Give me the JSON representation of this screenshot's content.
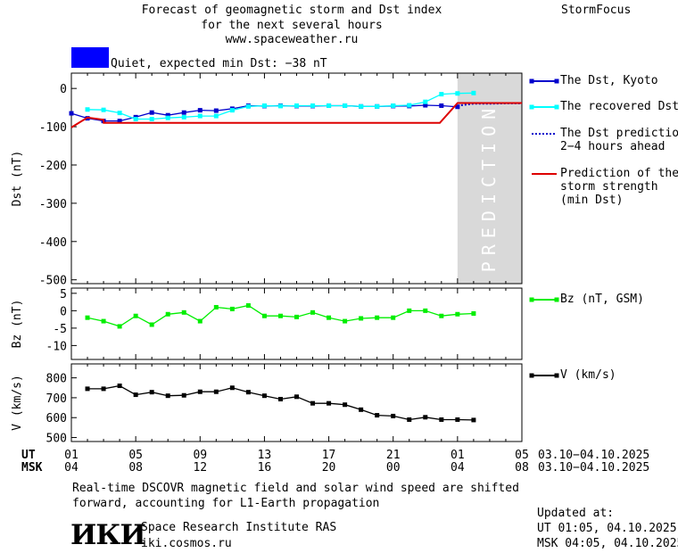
{
  "header": {
    "title_lines": [
      "Forecast of geomagnetic storm and Dst index",
      "for the next several hours",
      "www.spaceweather.ru"
    ],
    "brand": "StormFocus",
    "status_text": "Quiet, expected min Dst: −38 nT",
    "status_color": "#0000ff"
  },
  "legend": {
    "dst_kyoto": "The Dst, Kyoto",
    "recovered_dst": [
      "The recovered Dst"
    ],
    "dst_prediction": [
      "The Dst prediction",
      "2−4 hours ahead"
    ],
    "storm_strength": [
      "Prediction of the",
      "storm strength",
      "(min Dst)"
    ],
    "bz": "Bz (nT, GSM)",
    "v": "V (km/s)"
  },
  "prediction_label": "PREDICTION",
  "time_axis": {
    "ut_label": "UT",
    "msk_label": "MSK",
    "ut_ticks": [
      "01",
      "05",
      "09",
      "13",
      "17",
      "21",
      "01",
      "05"
    ],
    "msk_ticks": [
      "04",
      "08",
      "12",
      "16",
      "20",
      "00",
      "04",
      "08"
    ],
    "ut_range": "03.10−04.10.2025",
    "msk_range": "03.10−04.10.2025"
  },
  "footer": {
    "note_lines": [
      "Real-time DSCOVR magnetic field and solar wind speed are shifted",
      "forward, accounting for L1-Earth propagation"
    ],
    "logo_text": "ИКИ",
    "institute": "Space Research Institute RAS",
    "website": "iki.cosmos.ru",
    "updated_label": "Updated at:",
    "updated_ut": "UT   01:05, 04.10.2025",
    "updated_msk": "MSK 04:05, 04.10.2025"
  },
  "colors": {
    "dst": "#0000cc",
    "recovered": "#00ffff",
    "prediction": "#0000cc",
    "storm": "#dd0000",
    "bz": "#00ee00",
    "v": "#000000",
    "shade": "#d9d9d9"
  },
  "chart_data": [
    {
      "type": "line",
      "ylabel": "Dst (nT)",
      "xlim": [
        0,
        28
      ],
      "ylim": [
        -510,
        40
      ],
      "yticks": [
        0,
        -100,
        -200,
        -300,
        -400,
        -500
      ],
      "prediction_x_range": [
        24,
        28
      ],
      "series": [
        {
          "name": "The Dst, Kyoto",
          "x": [
            0,
            1,
            2,
            3,
            4,
            5,
            6,
            7,
            8,
            9,
            10,
            11,
            12,
            13,
            14,
            15,
            16,
            17,
            18,
            19,
            20,
            21,
            22,
            23,
            24
          ],
          "y": [
            -65,
            -78,
            -85,
            -85,
            -75,
            -63,
            -70,
            -63,
            -57,
            -58,
            -53,
            -45,
            -46,
            -45,
            -46,
            -46,
            -45,
            -45,
            -47,
            -47,
            -46,
            -46,
            -44,
            -45,
            -48
          ]
        },
        {
          "name": "The recovered Dst",
          "x": [
            1,
            2,
            3,
            4,
            5,
            6,
            7,
            8,
            9,
            10,
            11,
            12,
            13,
            14,
            15,
            16,
            17,
            18,
            19,
            20,
            21,
            22,
            23,
            24,
            25
          ],
          "y": [
            -55,
            -56,
            -64,
            -80,
            -80,
            -77,
            -75,
            -72,
            -72,
            -57,
            -47,
            -45,
            -46,
            -45,
            -45,
            -45,
            -45,
            -47,
            -47,
            -45,
            -44,
            -35,
            -15,
            -13,
            -12
          ]
        },
        {
          "name": "The Dst prediction 2−4 hours ahead",
          "x": [
            24,
            25,
            26,
            27,
            28
          ],
          "y": [
            -45,
            -40,
            -40,
            -39,
            -39
          ]
        },
        {
          "name": "Prediction of the storm strength (min Dst)",
          "x": [
            0,
            1,
            2,
            2.01,
            22.9,
            24,
            28
          ],
          "y": [
            -102,
            -76,
            -82,
            -90,
            -90,
            -38,
            -38
          ]
        }
      ]
    },
    {
      "type": "line",
      "ylabel": "Bz (nT)",
      "xlim": [
        0,
        28
      ],
      "ylim": [
        -14,
        6.5
      ],
      "yticks": [
        5,
        0,
        -5,
        -10
      ],
      "series": [
        {
          "name": "Bz (nT, GSM)",
          "x": [
            1,
            2,
            3,
            4,
            5,
            6,
            7,
            8,
            9,
            10,
            11,
            12,
            13,
            14,
            15,
            16,
            17,
            18,
            19,
            20,
            21,
            22,
            23,
            24,
            25
          ],
          "y": [
            -2,
            -3,
            -4.5,
            -1.5,
            -4,
            -1,
            -0.5,
            -3,
            1,
            0.5,
            1.5,
            -1.5,
            -1.5,
            -1.8,
            -0.5,
            -2,
            -3,
            -2.2,
            -2,
            -2,
            0,
            0,
            -1.5,
            -1,
            -0.8
          ]
        }
      ]
    },
    {
      "type": "line",
      "ylabel": "V (km/s)",
      "xlim": [
        0,
        28
      ],
      "ylim": [
        480,
        870
      ],
      "yticks": [
        800,
        700,
        600,
        500
      ],
      "series": [
        {
          "name": "V (km/s)",
          "x": [
            1,
            2,
            3,
            4,
            5,
            6,
            7,
            8,
            9,
            10,
            11,
            12,
            13,
            14,
            15,
            16,
            17,
            18,
            19,
            20,
            21,
            22,
            23,
            24,
            25
          ],
          "y": [
            745,
            745,
            760,
            715,
            728,
            710,
            712,
            730,
            730,
            750,
            728,
            710,
            693,
            705,
            672,
            672,
            665,
            640,
            612,
            608,
            590,
            602,
            590,
            590,
            588
          ]
        }
      ]
    }
  ]
}
